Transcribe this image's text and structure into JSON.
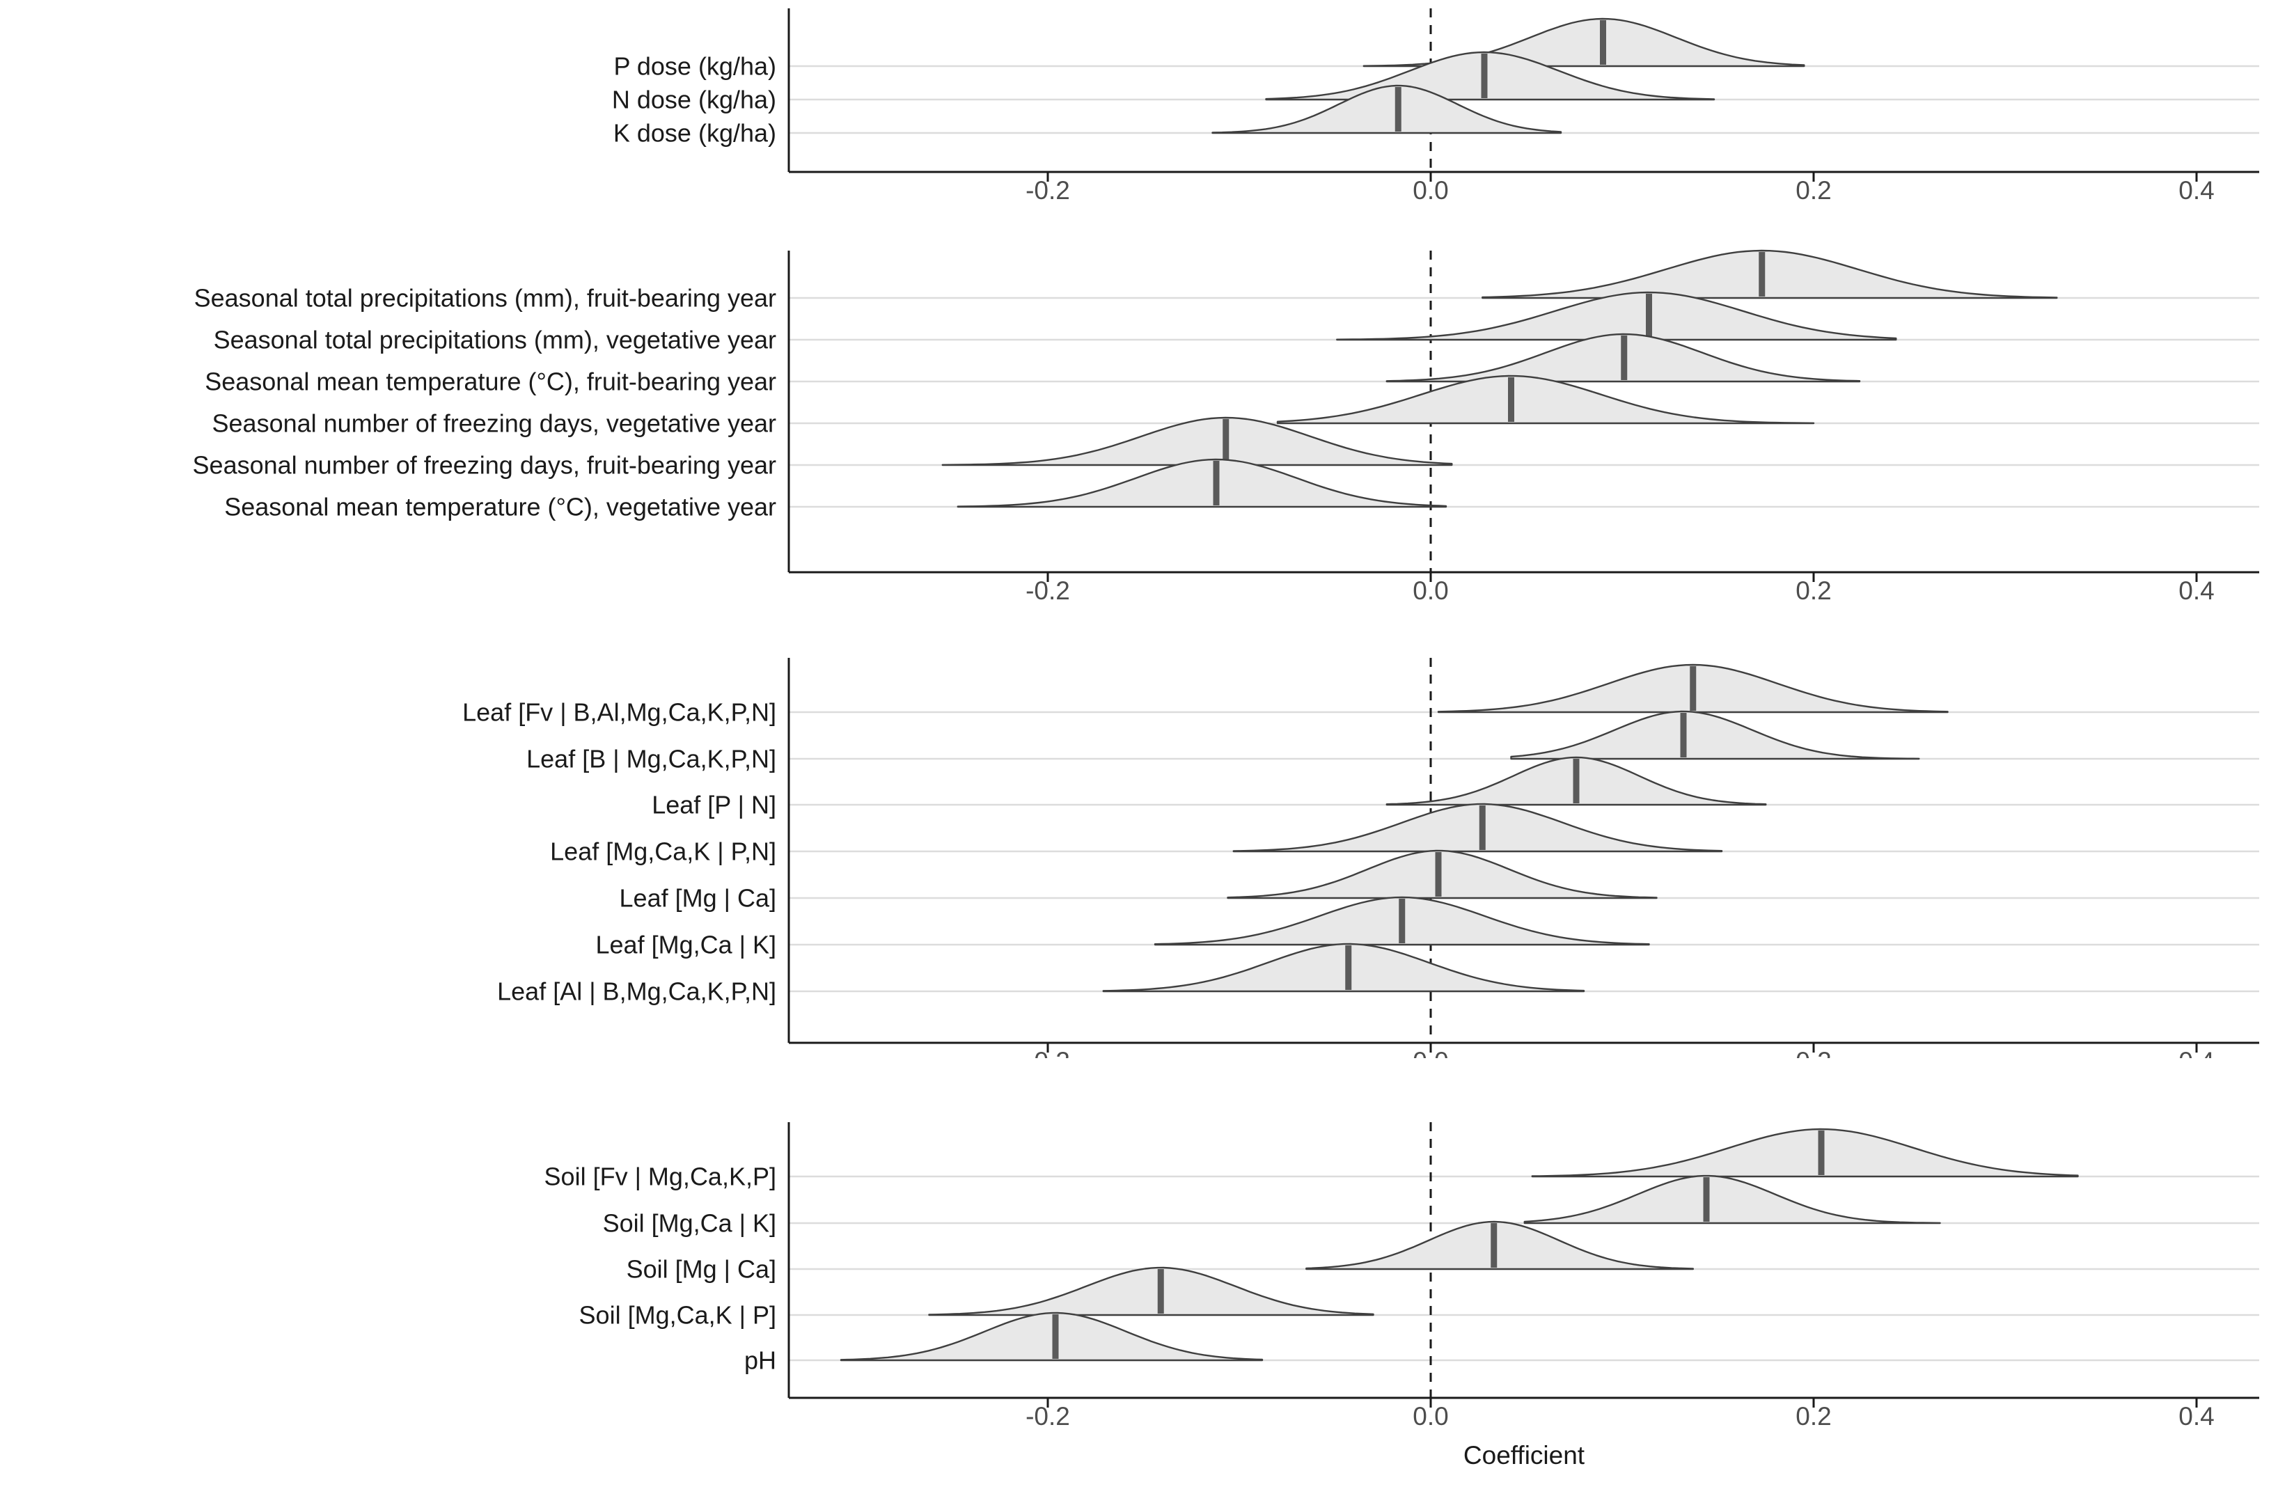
{
  "chart_data": {
    "type": "area",
    "subtype": "ridgeline-density-posteriors",
    "xlabel": "Coefficient",
    "xlim": [
      -0.335,
      0.43
    ],
    "x_ticks": [
      -0.2,
      0.0,
      0.2,
      0.4
    ],
    "x_tick_labels": [
      "-0.2",
      "0.0",
      "0.2",
      "0.4"
    ],
    "reference_line_x": 0.0,
    "legend": "none",
    "grid": "horizontal-major",
    "panels": [
      {
        "name": "fertilization-doses",
        "rows": [
          {
            "label": "P dose (kg/ha)",
            "median": 0.09,
            "sd": 0.038,
            "range": [
              -0.035,
              0.195
            ]
          },
          {
            "label": "N dose (kg/ha)",
            "median": 0.028,
            "sd": 0.039,
            "range": [
              -0.086,
              0.148
            ]
          },
          {
            "label": "K dose (kg/ha)",
            "median": -0.017,
            "sd": 0.031,
            "range": [
              -0.114,
              0.068
            ]
          }
        ]
      },
      {
        "name": "seasonal-climate",
        "rows": [
          {
            "label": "Seasonal total precipitations (mm), fruit-bearing year",
            "median": 0.173,
            "sd": 0.05,
            "range": [
              0.027,
              0.327
            ]
          },
          {
            "label": "Seasonal total precipitations (mm), vegetative year",
            "median": 0.114,
            "sd": 0.049,
            "range": [
              -0.049,
              0.243
            ]
          },
          {
            "label": "Seasonal mean temperature (°C), fruit-bearing year",
            "median": 0.101,
            "sd": 0.041,
            "range": [
              -0.023,
              0.224
            ]
          },
          {
            "label": "Seasonal number of freezing days, vegetative year",
            "median": 0.042,
            "sd": 0.047,
            "range": [
              -0.08,
              0.2
            ]
          },
          {
            "label": "Seasonal number of freezing days, fruit-bearing year",
            "median": -0.107,
            "sd": 0.044,
            "range": [
              -0.255,
              0.011
            ]
          },
          {
            "label": "Seasonal mean temperature (°C), vegetative year",
            "median": -0.112,
            "sd": 0.042,
            "range": [
              -0.247,
              0.008
            ]
          }
        ]
      },
      {
        "name": "leaf-nutrients",
        "rows": [
          {
            "label": "Leaf [Fv | B,Al,Mg,Ca,K,P,N]",
            "median": 0.137,
            "sd": 0.044,
            "range": [
              0.004,
              0.27
            ]
          },
          {
            "label": "Leaf [B | Mg,Ca,K,P,N]",
            "median": 0.132,
            "sd": 0.036,
            "range": [
              0.042,
              0.255
            ]
          },
          {
            "label": "Leaf [P | N]",
            "median": 0.076,
            "sd": 0.033,
            "range": [
              -0.023,
              0.175
            ]
          },
          {
            "label": "Leaf [Mg,Ca,K | P,N]",
            "median": 0.027,
            "sd": 0.042,
            "range": [
              -0.103,
              0.152
            ]
          },
          {
            "label": "Leaf [Mg | Ca]",
            "median": 0.004,
            "sd": 0.037,
            "range": [
              -0.106,
              0.118
            ]
          },
          {
            "label": "Leaf [Mg,Ca | K]",
            "median": -0.015,
            "sd": 0.043,
            "range": [
              -0.144,
              0.114
            ]
          },
          {
            "label": "Leaf [Al | B,Mg,Ca,K,P,N]",
            "median": -0.043,
            "sd": 0.042,
            "range": [
              -0.171,
              0.08
            ]
          }
        ]
      },
      {
        "name": "soil-nutrients",
        "rows": [
          {
            "label": "Soil [Fv | Mg,Ca,K,P]",
            "median": 0.204,
            "sd": 0.048,
            "range": [
              0.053,
              0.338
            ]
          },
          {
            "label": "Soil [Mg,Ca | K]",
            "median": 0.144,
            "sd": 0.036,
            "range": [
              0.049,
              0.266
            ]
          },
          {
            "label": "Soil [Mg | Ca]",
            "median": 0.033,
            "sd": 0.034,
            "range": [
              -0.065,
              0.137
            ]
          },
          {
            "label": "Soil [Mg,Ca,K | P]",
            "median": -0.141,
            "sd": 0.039,
            "range": [
              -0.262,
              -0.03
            ]
          },
          {
            "label": "pH",
            "median": -0.196,
            "sd": 0.037,
            "range": [
              -0.308,
              -0.088
            ]
          }
        ]
      }
    ],
    "style": {
      "density_fill": "#e8e8e8",
      "density_stroke": "#3f3f3f",
      "median_color": "#5a5a5a",
      "gridline_color": "#dcdcdc",
      "axis_color": "#1a1a1a",
      "tick_text_color": "#4d4d4d",
      "label_text_color": "#1a1a1a",
      "reference_line_color": "#1a1a1a"
    }
  }
}
